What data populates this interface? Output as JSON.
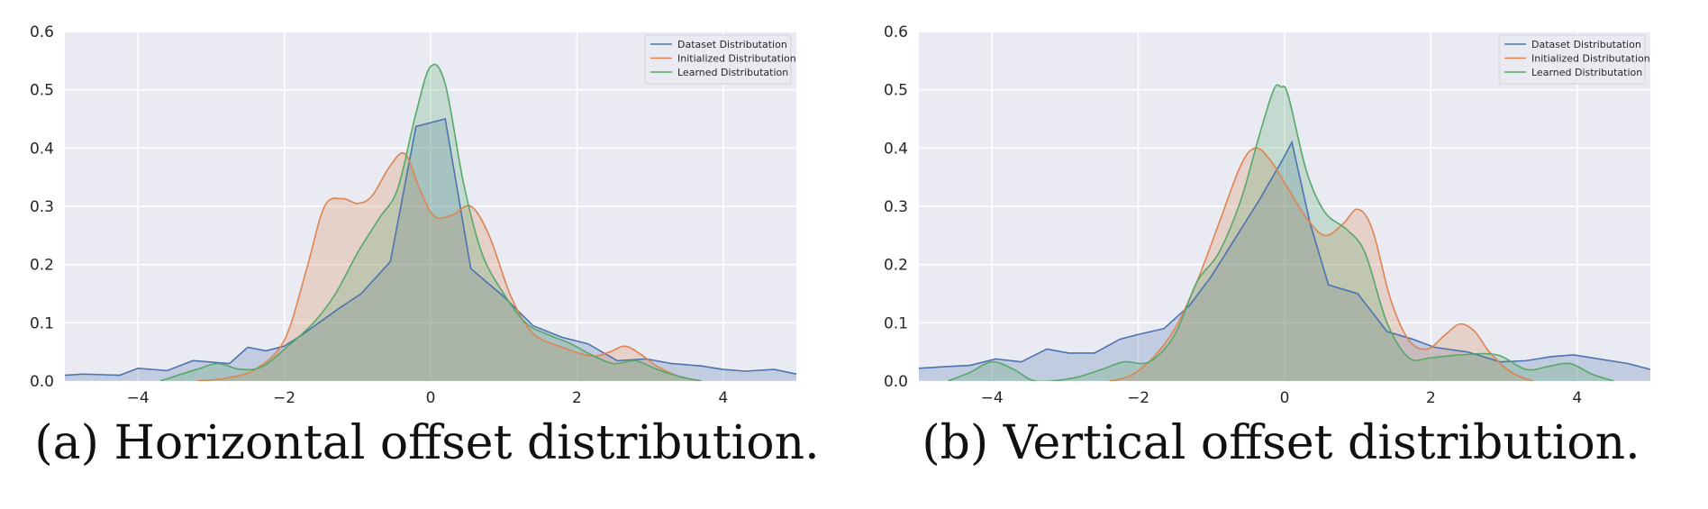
{
  "chart_data": [
    {
      "type": "area",
      "caption": "(a) Horizontal offset distribution.",
      "xlim": [
        -5,
        5
      ],
      "ylim": [
        0,
        0.6
      ],
      "xticks": [
        -4,
        -2,
        0,
        2,
        4
      ],
      "yticks": [
        0.0,
        0.1,
        0.2,
        0.3,
        0.4,
        0.5,
        0.6
      ],
      "grid": true,
      "legend_position": "top-right",
      "series": [
        {
          "name": "Dataset Distributation",
          "color": "#4c72b0",
          "x": [
            -5,
            -4.75,
            -4.25,
            -4,
            -3.6,
            -3.25,
            -2.75,
            -2.5,
            -2.25,
            -2,
            -1.75,
            -1.25,
            -0.95,
            -0.55,
            -0.2,
            0.2,
            0.55,
            1.0,
            1.4,
            1.8,
            2.15,
            2.55,
            2.95,
            3.3,
            3.7,
            4.0,
            4.3,
            4.7,
            5
          ],
          "y": [
            0.01,
            0.012,
            0.01,
            0.022,
            0.018,
            0.035,
            0.03,
            0.058,
            0.052,
            0.06,
            0.08,
            0.125,
            0.15,
            0.205,
            0.437,
            0.45,
            0.193,
            0.145,
            0.095,
            0.075,
            0.064,
            0.035,
            0.038,
            0.03,
            0.026,
            0.02,
            0.017,
            0.02,
            0.012
          ]
        },
        {
          "name": "Initialized Distributation",
          "color": "#dd8452",
          "x": [
            -3.2,
            -2.8,
            -2.4,
            -2.0,
            -1.7,
            -1.45,
            -1.2,
            -1.0,
            -0.8,
            -0.55,
            -0.35,
            -0.15,
            0.05,
            0.3,
            0.55,
            0.8,
            1.1,
            1.4,
            1.8,
            2.2,
            2.45,
            2.65,
            2.85,
            3.1,
            3.4,
            3.7
          ],
          "y": [
            0.0,
            0.005,
            0.02,
            0.07,
            0.19,
            0.3,
            0.313,
            0.305,
            0.318,
            0.37,
            0.39,
            0.33,
            0.283,
            0.285,
            0.3,
            0.25,
            0.145,
            0.082,
            0.058,
            0.043,
            0.05,
            0.06,
            0.048,
            0.025,
            0.008,
            0.0
          ]
        },
        {
          "name": "Learned Distributation",
          "color": "#55a868",
          "x": [
            -3.7,
            -3.2,
            -2.9,
            -2.6,
            -2.3,
            -1.95,
            -1.6,
            -1.3,
            -1.0,
            -0.7,
            -0.45,
            -0.2,
            0.0,
            0.2,
            0.45,
            0.7,
            1.0,
            1.3,
            1.6,
            1.9,
            2.2,
            2.5,
            2.8,
            3.1,
            3.4,
            3.7
          ],
          "y": [
            0.0,
            0.02,
            0.03,
            0.02,
            0.025,
            0.06,
            0.1,
            0.15,
            0.22,
            0.28,
            0.33,
            0.46,
            0.54,
            0.51,
            0.34,
            0.22,
            0.15,
            0.1,
            0.08,
            0.065,
            0.045,
            0.03,
            0.035,
            0.02,
            0.008,
            0.0
          ]
        }
      ]
    },
    {
      "type": "area",
      "caption": "(b) Vertical offset distribution.",
      "xlim": [
        -5,
        5
      ],
      "ylim": [
        0,
        0.6
      ],
      "xticks": [
        -4,
        -2,
        0,
        2,
        4
      ],
      "yticks": [
        0.0,
        0.1,
        0.2,
        0.3,
        0.4,
        0.5,
        0.6
      ],
      "grid": true,
      "legend_position": "top-right",
      "series": [
        {
          "name": "Dataset Distributation",
          "color": "#4c72b0",
          "x": [
            -5,
            -4.6,
            -4.3,
            -3.95,
            -3.6,
            -3.25,
            -2.95,
            -2.6,
            -2.25,
            -2.0,
            -1.65,
            -1.3,
            -1.0,
            -0.65,
            -0.35,
            -0.05,
            0.1,
            0.35,
            0.6,
            1.0,
            1.4,
            1.75,
            2.05,
            2.5,
            2.95,
            3.3,
            3.65,
            3.95,
            4.3,
            4.7,
            5
          ],
          "y": [
            0.022,
            0.025,
            0.027,
            0.038,
            0.033,
            0.055,
            0.048,
            0.048,
            0.072,
            0.08,
            0.09,
            0.13,
            0.18,
            0.25,
            0.31,
            0.375,
            0.41,
            0.27,
            0.165,
            0.15,
            0.085,
            0.072,
            0.058,
            0.05,
            0.033,
            0.035,
            0.042,
            0.045,
            0.038,
            0.03,
            0.02
          ]
        },
        {
          "name": "Initialized Distributation",
          "color": "#dd8452",
          "x": [
            -2.4,
            -2.1,
            -1.8,
            -1.5,
            -1.2,
            -0.9,
            -0.6,
            -0.4,
            -0.2,
            0.05,
            0.3,
            0.55,
            0.8,
            1.0,
            1.2,
            1.45,
            1.7,
            1.95,
            2.2,
            2.4,
            2.6,
            2.8,
            3.1,
            3.4
          ],
          "y": [
            0.0,
            0.01,
            0.04,
            0.09,
            0.17,
            0.27,
            0.37,
            0.4,
            0.38,
            0.33,
            0.28,
            0.25,
            0.27,
            0.295,
            0.26,
            0.14,
            0.07,
            0.055,
            0.08,
            0.098,
            0.085,
            0.05,
            0.015,
            0.0
          ]
        },
        {
          "name": "Learned Distributation",
          "color": "#55a868",
          "x": [
            -4.6,
            -4.3,
            -4.0,
            -3.7,
            -3.4,
            -2.9,
            -2.5,
            -2.2,
            -1.85,
            -1.5,
            -1.2,
            -0.9,
            -0.6,
            -0.35,
            -0.15,
            -0.05,
            0.05,
            0.3,
            0.55,
            0.85,
            1.1,
            1.4,
            1.7,
            2.0,
            2.4,
            2.9,
            3.3,
            3.6,
            3.9,
            4.2,
            4.5
          ],
          "y": [
            0.0,
            0.015,
            0.033,
            0.02,
            0.0,
            0.005,
            0.02,
            0.033,
            0.033,
            0.08,
            0.17,
            0.22,
            0.31,
            0.42,
            0.5,
            0.505,
            0.49,
            0.36,
            0.29,
            0.26,
            0.22,
            0.1,
            0.04,
            0.04,
            0.045,
            0.045,
            0.02,
            0.025,
            0.03,
            0.012,
            0.0
          ]
        }
      ]
    }
  ]
}
